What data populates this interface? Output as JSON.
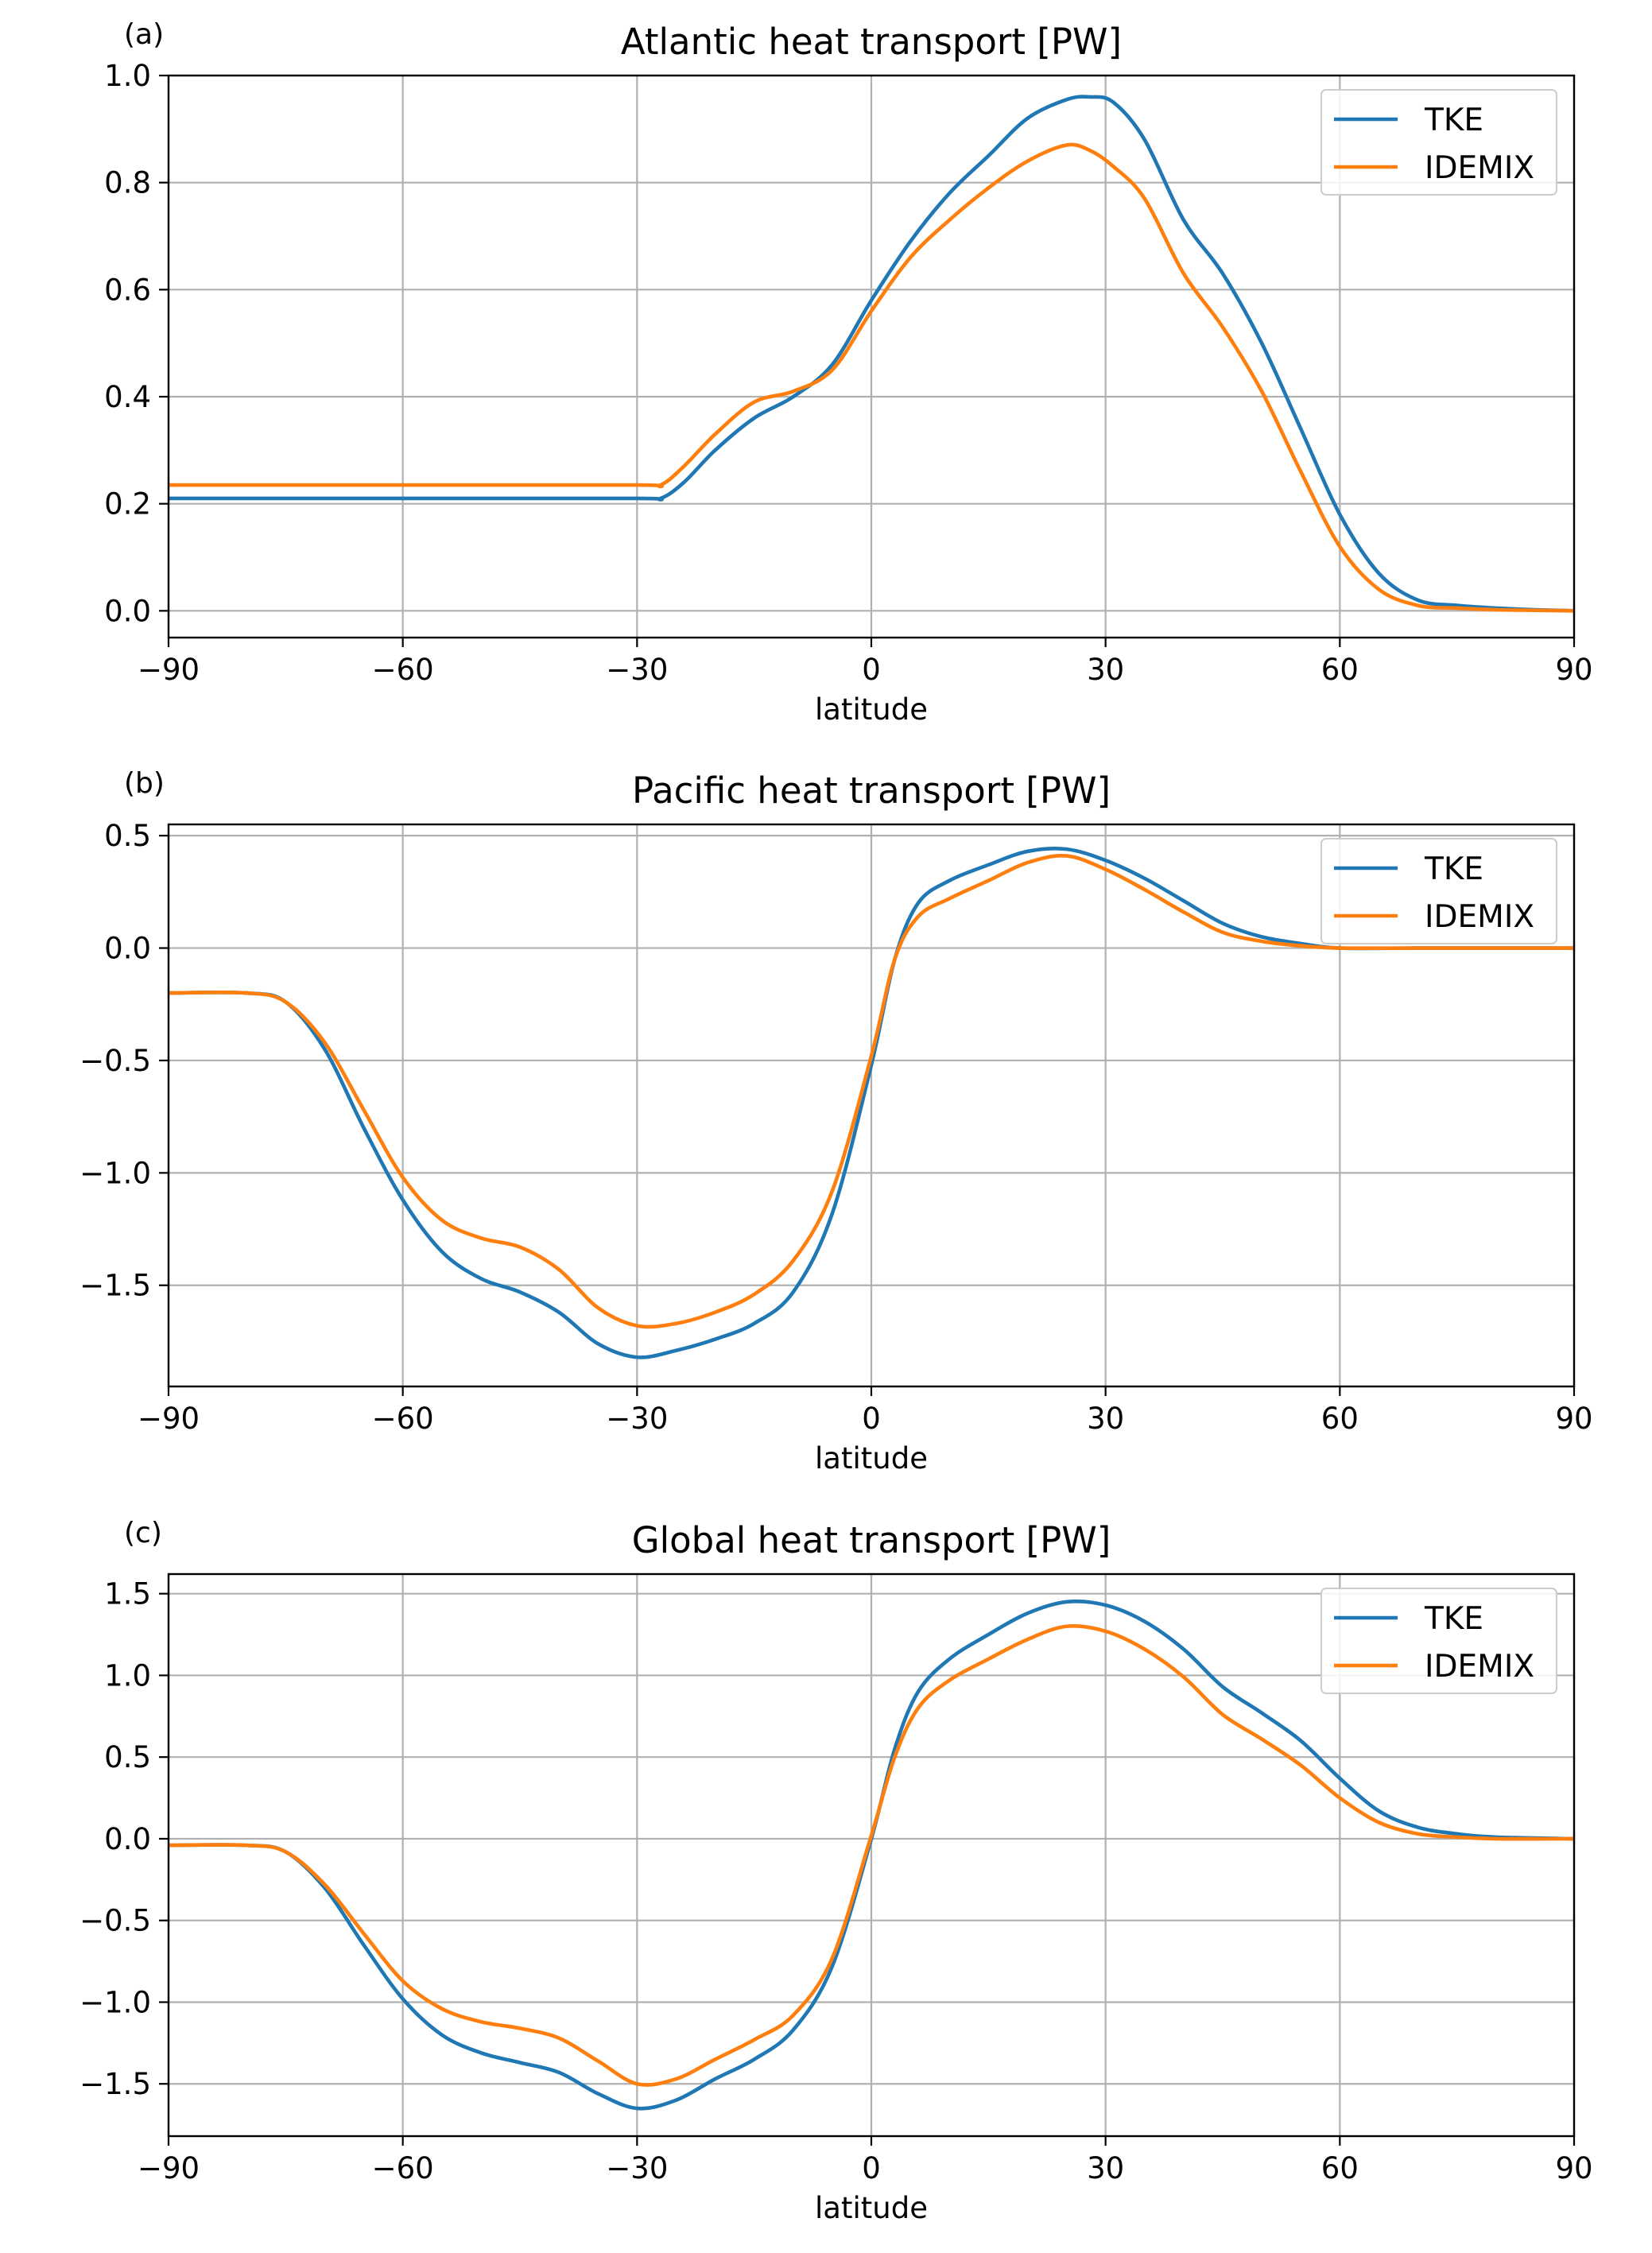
{
  "chart_data": [
    {
      "type": "line",
      "panel_label": "(a)",
      "title": "Atlantic heat transport [PW]",
      "xlabel": "latitude",
      "ylabel": "",
      "xlim": [
        -90,
        90
      ],
      "ylim": [
        -0.05,
        1.0
      ],
      "xticks": [
        -90,
        -60,
        -30,
        0,
        30,
        60,
        90
      ],
      "xtick_labels": [
        "−90",
        "−60",
        "−30",
        "0",
        "30",
        "60",
        "90"
      ],
      "yticks": [
        0.0,
        0.2,
        0.4,
        0.6,
        0.8,
        1.0
      ],
      "ytick_labels": [
        "0.0",
        "0.2",
        "0.4",
        "0.6",
        "0.8",
        "1.0"
      ],
      "grid": true,
      "legend": "top-right",
      "series": [
        {
          "name": "TKE",
          "color": "#1f77b4",
          "x": [
            -90,
            -60,
            -30,
            -27,
            -24,
            -20,
            -15,
            -10,
            -5,
            0,
            5,
            10,
            15,
            20,
            25,
            28,
            31,
            35,
            40,
            45,
            50,
            55,
            60,
            65,
            70,
            75,
            80,
            85,
            90
          ],
          "y": [
            0.21,
            0.21,
            0.21,
            0.21,
            0.24,
            0.3,
            0.36,
            0.4,
            0.46,
            0.58,
            0.69,
            0.78,
            0.85,
            0.92,
            0.955,
            0.96,
            0.95,
            0.88,
            0.73,
            0.63,
            0.5,
            0.34,
            0.18,
            0.07,
            0.02,
            0.01,
            0.005,
            0.002,
            0.0
          ],
          "smooth": true
        },
        {
          "name": "IDEMIX",
          "color": "#ff7f0e",
          "x": [
            -90,
            -60,
            -30,
            -27,
            -24,
            -20,
            -15,
            -10,
            -5,
            0,
            5,
            10,
            15,
            20,
            25,
            28,
            31,
            35,
            40,
            45,
            50,
            55,
            60,
            65,
            70,
            75,
            80,
            85,
            90
          ],
          "y": [
            0.235,
            0.235,
            0.235,
            0.235,
            0.27,
            0.33,
            0.39,
            0.41,
            0.45,
            0.56,
            0.66,
            0.73,
            0.79,
            0.84,
            0.87,
            0.86,
            0.83,
            0.77,
            0.63,
            0.53,
            0.41,
            0.26,
            0.12,
            0.04,
            0.01,
            0.005,
            0.002,
            0.001,
            0.0
          ],
          "smooth": true
        }
      ]
    },
    {
      "type": "line",
      "panel_label": "(b)",
      "title": "Pacific heat transport [PW]",
      "xlabel": "latitude",
      "ylabel": "",
      "xlim": [
        -90,
        90
      ],
      "ylim": [
        -1.95,
        0.55
      ],
      "xticks": [
        -90,
        -60,
        -30,
        0,
        30,
        60,
        90
      ],
      "xtick_labels": [
        "−90",
        "−60",
        "−30",
        "0",
        "30",
        "60",
        "90"
      ],
      "yticks": [
        0.5,
        0.0,
        -0.5,
        -1.0,
        -1.5
      ],
      "ytick_labels": [
        "0.5",
        "0.0",
        "−0.5",
        "−1.0",
        "−1.5"
      ],
      "grid": true,
      "legend": "top-right",
      "series": [
        {
          "name": "TKE",
          "color": "#1f77b4",
          "x": [
            -90,
            -80,
            -75,
            -70,
            -65,
            -60,
            -55,
            -50,
            -45,
            -40,
            -35,
            -30,
            -25,
            -20,
            -15,
            -10,
            -5,
            0,
            3,
            6,
            10,
            15,
            20,
            25,
            30,
            35,
            40,
            45,
            50,
            55,
            60,
            70,
            80,
            90
          ],
          "y": [
            -0.2,
            -0.2,
            -0.24,
            -0.45,
            -0.8,
            -1.12,
            -1.35,
            -1.47,
            -1.53,
            -1.62,
            -1.76,
            -1.82,
            -1.79,
            -1.74,
            -1.67,
            -1.53,
            -1.18,
            -0.52,
            -0.05,
            0.2,
            0.3,
            0.37,
            0.43,
            0.44,
            0.39,
            0.31,
            0.21,
            0.11,
            0.05,
            0.02,
            0.0,
            0.0,
            0.0,
            0.0
          ],
          "smooth": true
        },
        {
          "name": "IDEMIX",
          "color": "#ff7f0e",
          "x": [
            -90,
            -80,
            -75,
            -70,
            -65,
            -60,
            -55,
            -50,
            -45,
            -40,
            -35,
            -30,
            -25,
            -20,
            -15,
            -10,
            -5,
            0,
            3,
            6,
            10,
            15,
            20,
            25,
            30,
            35,
            40,
            45,
            50,
            55,
            60,
            70,
            80,
            90
          ],
          "y": [
            -0.2,
            -0.2,
            -0.24,
            -0.42,
            -0.72,
            -1.02,
            -1.21,
            -1.29,
            -1.33,
            -1.43,
            -1.6,
            -1.68,
            -1.67,
            -1.62,
            -1.54,
            -1.39,
            -1.08,
            -0.48,
            -0.05,
            0.14,
            0.22,
            0.3,
            0.38,
            0.41,
            0.35,
            0.26,
            0.16,
            0.07,
            0.03,
            0.01,
            0.0,
            0.0,
            0.0,
            0.0
          ],
          "smooth": true
        }
      ]
    },
    {
      "type": "line",
      "panel_label": "(c)",
      "title": "Global heat transport [PW]",
      "xlabel": "latitude",
      "ylabel": "",
      "xlim": [
        -90,
        90
      ],
      "ylim": [
        -1.82,
        1.62
      ],
      "xticks": [
        -90,
        -60,
        -30,
        0,
        30,
        60,
        90
      ],
      "xtick_labels": [
        "−90",
        "−60",
        "−30",
        "0",
        "30",
        "60",
        "90"
      ],
      "yticks": [
        1.5,
        1.0,
        0.5,
        0.0,
        -0.5,
        -1.0,
        -1.5
      ],
      "ytick_labels": [
        "1.5",
        "1.0",
        "0.5",
        "0.0",
        "−0.5",
        "−1.0",
        "−1.5"
      ],
      "grid": true,
      "legend": "top-right",
      "series": [
        {
          "name": "TKE",
          "color": "#1f77b4",
          "x": [
            -90,
            -80,
            -75,
            -70,
            -65,
            -60,
            -55,
            -50,
            -45,
            -40,
            -35,
            -30,
            -25,
            -20,
            -15,
            -10,
            -5,
            0,
            3,
            6,
            10,
            15,
            20,
            25,
            30,
            35,
            40,
            45,
            50,
            55,
            60,
            65,
            70,
            75,
            80,
            90
          ],
          "y": [
            -0.04,
            -0.04,
            -0.08,
            -0.3,
            -0.65,
            -0.98,
            -1.2,
            -1.31,
            -1.37,
            -1.43,
            -1.56,
            -1.65,
            -1.6,
            -1.47,
            -1.35,
            -1.17,
            -0.78,
            0.0,
            0.55,
            0.9,
            1.1,
            1.25,
            1.38,
            1.45,
            1.43,
            1.33,
            1.16,
            0.93,
            0.77,
            0.6,
            0.37,
            0.17,
            0.07,
            0.03,
            0.01,
            0.0
          ],
          "smooth": true
        },
        {
          "name": "IDEMIX",
          "color": "#ff7f0e",
          "x": [
            -90,
            -80,
            -75,
            -70,
            -65,
            -60,
            -55,
            -50,
            -45,
            -40,
            -35,
            -30,
            -25,
            -20,
            -15,
            -10,
            -5,
            0,
            3,
            6,
            10,
            15,
            20,
            25,
            30,
            35,
            40,
            45,
            50,
            55,
            60,
            65,
            70,
            75,
            80,
            90
          ],
          "y": [
            -0.04,
            -0.04,
            -0.08,
            -0.28,
            -0.58,
            -0.87,
            -1.04,
            -1.12,
            -1.16,
            -1.22,
            -1.36,
            -1.5,
            -1.47,
            -1.35,
            -1.23,
            -1.08,
            -0.73,
            0.02,
            0.5,
            0.8,
            0.97,
            1.1,
            1.22,
            1.3,
            1.27,
            1.16,
            0.99,
            0.76,
            0.61,
            0.45,
            0.25,
            0.1,
            0.03,
            0.01,
            0.0,
            0.0
          ],
          "smooth": true
        }
      ]
    }
  ]
}
